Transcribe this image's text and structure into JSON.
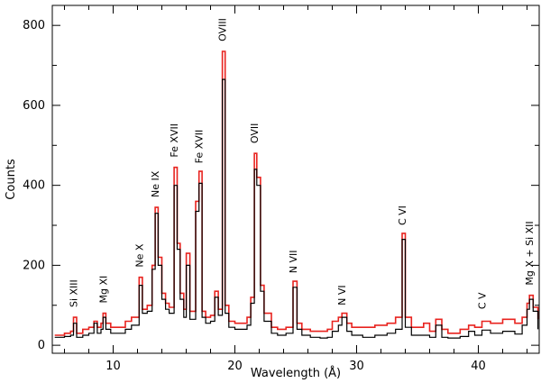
{
  "chart_data": {
    "type": "line",
    "title": "",
    "xlabel": "Wavelength (Å)",
    "ylabel": "Counts",
    "xlim": [
      5,
      45
    ],
    "ylim": [
      -20,
      850
    ],
    "x_ticks": [
      10,
      20,
      30,
      40
    ],
    "y_ticks": [
      0,
      200,
      400,
      600,
      800
    ],
    "grid": false,
    "legend": "none",
    "series": [
      {
        "color": "#e8231f",
        "x": [
          5.2,
          6.0,
          6.5,
          6.74,
          7.0,
          7.5,
          8.0,
          8.42,
          8.7,
          9.0,
          9.17,
          9.4,
          9.8,
          10.3,
          11.0,
          11.5,
          12.13,
          12.4,
          12.8,
          13.2,
          13.45,
          13.7,
          14.0,
          14.3,
          14.6,
          15.01,
          15.26,
          15.5,
          15.8,
          16.01,
          16.3,
          16.78,
          17.05,
          17.3,
          17.6,
          18.0,
          18.35,
          18.64,
          18.97,
          19.2,
          19.5,
          20.0,
          20.5,
          21.0,
          21.3,
          21.6,
          21.8,
          22.1,
          22.4,
          23.0,
          23.5,
          24.2,
          24.78,
          25.1,
          25.5,
          26.2,
          27.0,
          27.6,
          28.0,
          28.5,
          28.79,
          29.2,
          29.6,
          30.5,
          31.5,
          32.5,
          33.2,
          33.74,
          34.0,
          34.5,
          35.5,
          36.0,
          36.5,
          37.0,
          37.5,
          38.5,
          39.2,
          39.7,
          40.3,
          41.0,
          42.0,
          43.0,
          43.6,
          44.0,
          44.2,
          44.5,
          44.9
        ],
        "y": [
          25,
          30,
          35,
          70,
          30,
          40,
          45,
          60,
          45,
          55,
          80,
          55,
          45,
          45,
          60,
          70,
          170,
          90,
          100,
          200,
          345,
          220,
          130,
          105,
          95,
          445,
          255,
          130,
          90,
          230,
          85,
          360,
          435,
          85,
          70,
          75,
          135,
          90,
          735,
          100,
          60,
          55,
          55,
          70,
          120,
          480,
          420,
          150,
          80,
          45,
          40,
          45,
          160,
          55,
          40,
          35,
          35,
          40,
          60,
          70,
          80,
          55,
          45,
          45,
          50,
          55,
          70,
          280,
          70,
          45,
          55,
          35,
          65,
          40,
          30,
          40,
          50,
          45,
          60,
          55,
          65,
          55,
          70,
          105,
          125,
          95,
          65
        ]
      },
      {
        "color": "#000000",
        "x": [
          5.2,
          6.0,
          6.5,
          6.74,
          7.0,
          7.5,
          8.0,
          8.42,
          8.7,
          9.0,
          9.17,
          9.4,
          9.8,
          10.3,
          11.0,
          11.5,
          12.13,
          12.4,
          12.8,
          13.2,
          13.45,
          13.7,
          14.0,
          14.3,
          14.6,
          15.01,
          15.26,
          15.5,
          15.8,
          16.01,
          16.3,
          16.78,
          17.05,
          17.3,
          17.6,
          18.0,
          18.35,
          18.64,
          18.97,
          19.2,
          19.5,
          20.0,
          20.5,
          21.0,
          21.3,
          21.6,
          21.8,
          22.1,
          22.4,
          23.0,
          23.5,
          24.2,
          24.78,
          25.1,
          25.5,
          26.2,
          27.0,
          27.6,
          28.0,
          28.5,
          28.79,
          29.2,
          29.6,
          30.5,
          31.5,
          32.5,
          33.2,
          33.74,
          34.0,
          34.5,
          35.5,
          36.0,
          36.5,
          37.0,
          37.5,
          38.5,
          39.2,
          39.7,
          40.3,
          41.0,
          42.0,
          43.0,
          43.6,
          44.0,
          44.2,
          44.5,
          44.9
        ],
        "y": [
          20,
          22,
          25,
          55,
          20,
          25,
          30,
          55,
          30,
          40,
          70,
          40,
          30,
          30,
          40,
          50,
          150,
          80,
          85,
          190,
          330,
          200,
          115,
          90,
          80,
          400,
          240,
          115,
          70,
          200,
          65,
          335,
          405,
          70,
          55,
          60,
          120,
          75,
          665,
          80,
          45,
          40,
          40,
          50,
          105,
          440,
          400,
          135,
          60,
          30,
          25,
          30,
          145,
          40,
          25,
          20,
          18,
          20,
          35,
          50,
          70,
          35,
          25,
          20,
          25,
          30,
          40,
          265,
          45,
          25,
          25,
          20,
          50,
          20,
          18,
          22,
          35,
          25,
          38,
          30,
          35,
          28,
          50,
          90,
          115,
          85,
          40
        ]
      }
    ],
    "annotations": [
      {
        "text": "Si XIII",
        "x": 6.74,
        "y": 95
      },
      {
        "text": "Mg XI",
        "x": 9.17,
        "y": 105
      },
      {
        "text": "Ne X",
        "x": 12.13,
        "y": 195
      },
      {
        "text": "Ne IX",
        "x": 13.45,
        "y": 370
      },
      {
        "text": "Fe XVII",
        "x": 15.01,
        "y": 470
      },
      {
        "text": "Fe XVII",
        "x": 17.05,
        "y": 455
      },
      {
        "text": "OVIII",
        "x": 18.97,
        "y": 760
      },
      {
        "text": "OVII",
        "x": 21.6,
        "y": 505
      },
      {
        "text": "N VII",
        "x": 24.78,
        "y": 180
      },
      {
        "text": "N VI",
        "x": 28.79,
        "y": 100
      },
      {
        "text": "C VI",
        "x": 33.74,
        "y": 300
      },
      {
        "text": "C V",
        "x": 40.3,
        "y": 90
      },
      {
        "text": "Mg X + Si XII",
        "x": 44.2,
        "y": 150
      }
    ]
  }
}
